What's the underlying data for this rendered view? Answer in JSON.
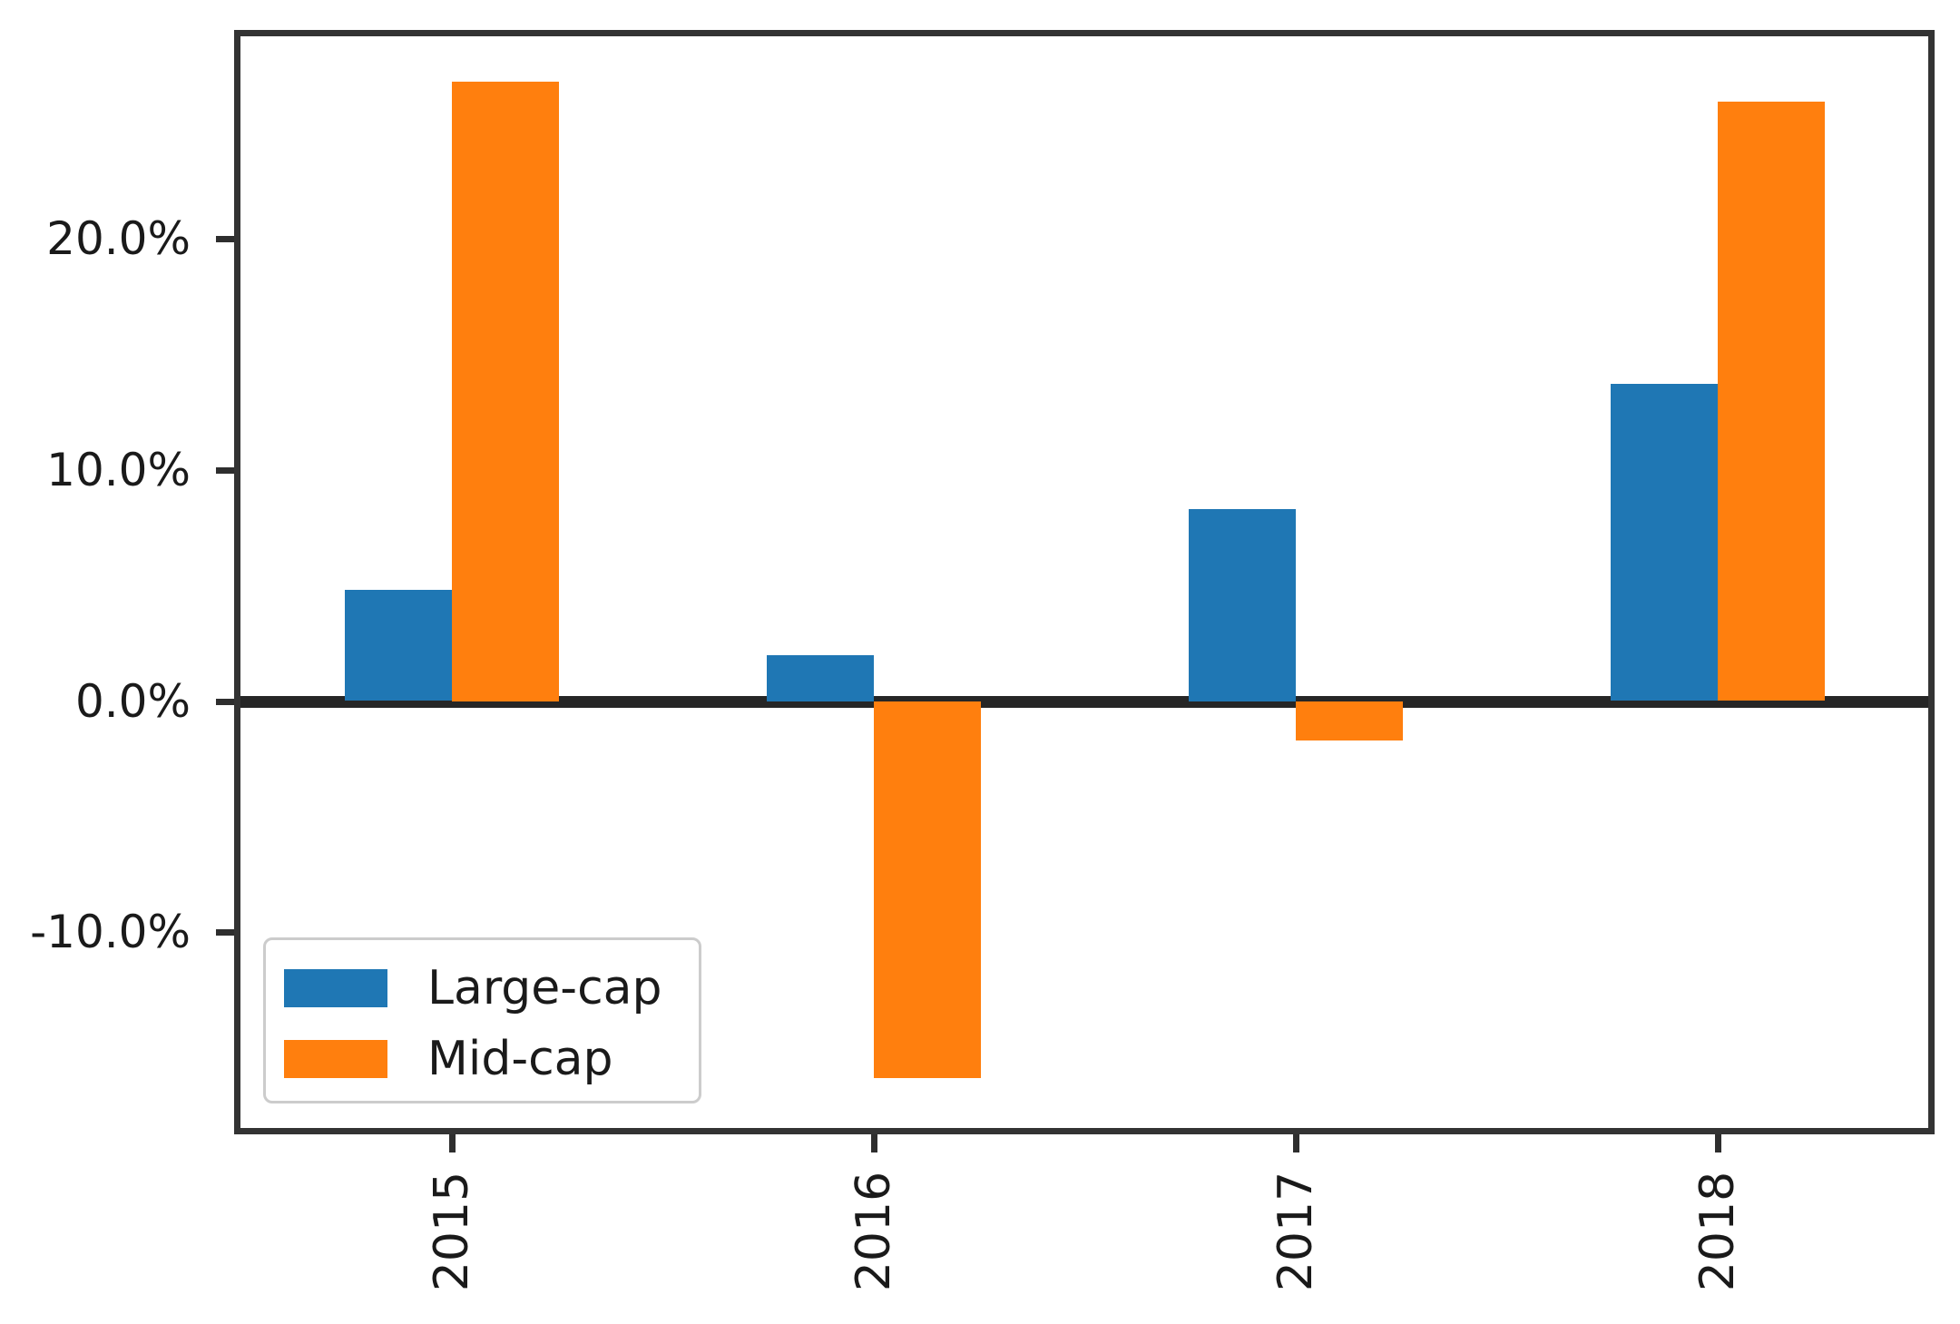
{
  "chart_data": {
    "type": "bar",
    "title": "",
    "xlabel": "",
    "ylabel": "",
    "categories": [
      "2015",
      "2016",
      "2017",
      "2018"
    ],
    "series": [
      {
        "name": "Large-cap",
        "color": "#1f77b4",
        "values": [
          4.8,
          2.0,
          8.3,
          13.7
        ]
      },
      {
        "name": "Mid-cap",
        "color": "#ff7f0e",
        "values": [
          26.8,
          -16.3,
          -1.7,
          25.9
        ]
      }
    ],
    "ylim": [
      -18.5,
      28.9
    ],
    "yticks": [
      {
        "value": 20,
        "label": "20.0%"
      },
      {
        "value": 10,
        "label": "10.0%"
      },
      {
        "value": 0,
        "label": "0.0%"
      },
      {
        "value": -10,
        "label": "-10.0%"
      }
    ],
    "xtick_rotation": 90,
    "grid": false,
    "zero_line": true,
    "legend": {
      "position": "lower-left",
      "entries": [
        "Large-cap",
        "Mid-cap"
      ]
    }
  }
}
